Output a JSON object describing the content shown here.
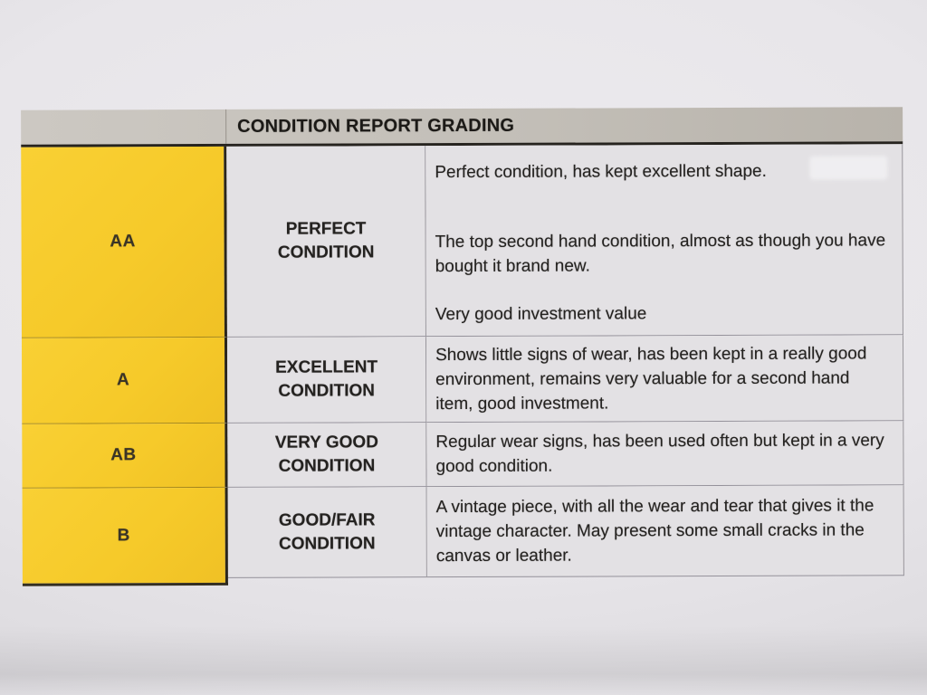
{
  "table": {
    "title": "CONDITION REPORT GRADING",
    "colors": {
      "grade_column_yellow": "#f6ca2a",
      "header_band_gray": "#c3bfb8",
      "cell_background_gray": "#e3e1e4",
      "text_black": "#232120"
    },
    "rows": [
      {
        "grade": "AA",
        "condition": "PERFECT CONDITION",
        "condition_lines": [
          "PERFECT",
          "CONDITION"
        ],
        "paragraphs": [
          "Perfect condition, has kept excellent shape.",
          "The top second hand condition, almost as though you have bought it brand new.",
          "Very good investment value"
        ]
      },
      {
        "grade": "A",
        "condition": "EXCELLENT CONDITION",
        "condition_lines": [
          "EXCELLENT",
          "CONDITION"
        ],
        "paragraphs": [
          "Shows little signs of wear, has been kept in a really good environment, remains very valuable for a second hand item, good investment."
        ]
      },
      {
        "grade": "AB",
        "condition": "VERY GOOD CONDITION",
        "condition_lines": [
          "VERY GOOD",
          "CONDITION"
        ],
        "paragraphs": [
          "Regular wear signs, has been used often but kept in a very good condition."
        ]
      },
      {
        "grade": "B",
        "condition": "GOOD/FAIR CONDITION",
        "condition_lines": [
          "GOOD/FAIR",
          "CONDITION"
        ],
        "paragraphs": [
          "A vintage piece, with all the wear and tear that gives it the vintage character. May present some small cracks in the canvas or leather."
        ]
      }
    ]
  }
}
